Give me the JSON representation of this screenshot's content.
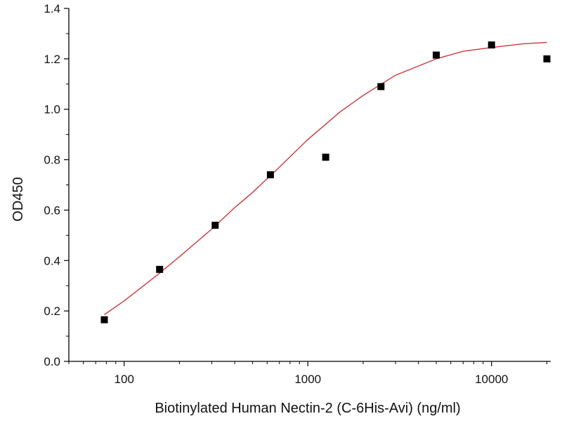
{
  "chart_data": {
    "type": "scatter",
    "xlabel": "Biotinylated Human Nectin-2 (C-6His-Avi) (ng/ml)",
    "ylabel": "OD450",
    "x_scale": "log",
    "xlim": [
      50,
      21000
    ],
    "ylim": [
      0,
      1.4
    ],
    "x_ticks": [
      100,
      1000,
      10000
    ],
    "x_tick_labels": [
      "100",
      "1000",
      "10000"
    ],
    "y_ticks": [
      0,
      0.2,
      0.4,
      0.6,
      0.8,
      1.0,
      1.2,
      1.4
    ],
    "y_tick_labels": [
      "0.0",
      "0.2",
      "0.4",
      "0.6",
      "0.8",
      "1.0",
      "1.2",
      "1.4"
    ],
    "grid": false,
    "legend": "none",
    "series": [
      {
        "kind": "points",
        "marker": "square",
        "color": "#000000",
        "x": [
          78,
          156,
          313,
          625,
          1250,
          2500,
          5000,
          10000,
          20000
        ],
        "y": [
          0.165,
          0.365,
          0.54,
          0.74,
          0.81,
          1.09,
          1.215,
          1.255,
          1.2
        ]
      },
      {
        "kind": "fit",
        "color": "#c9383c",
        "x": [
          78,
          100,
          150,
          200,
          300,
          400,
          500,
          700,
          1000,
          1500,
          2000,
          3000,
          5000,
          7000,
          10000,
          15000,
          20000
        ],
        "y": [
          0.185,
          0.24,
          0.34,
          0.415,
          0.525,
          0.61,
          0.67,
          0.77,
          0.88,
          0.99,
          1.055,
          1.135,
          1.2,
          1.23,
          1.245,
          1.26,
          1.265
        ]
      }
    ]
  }
}
